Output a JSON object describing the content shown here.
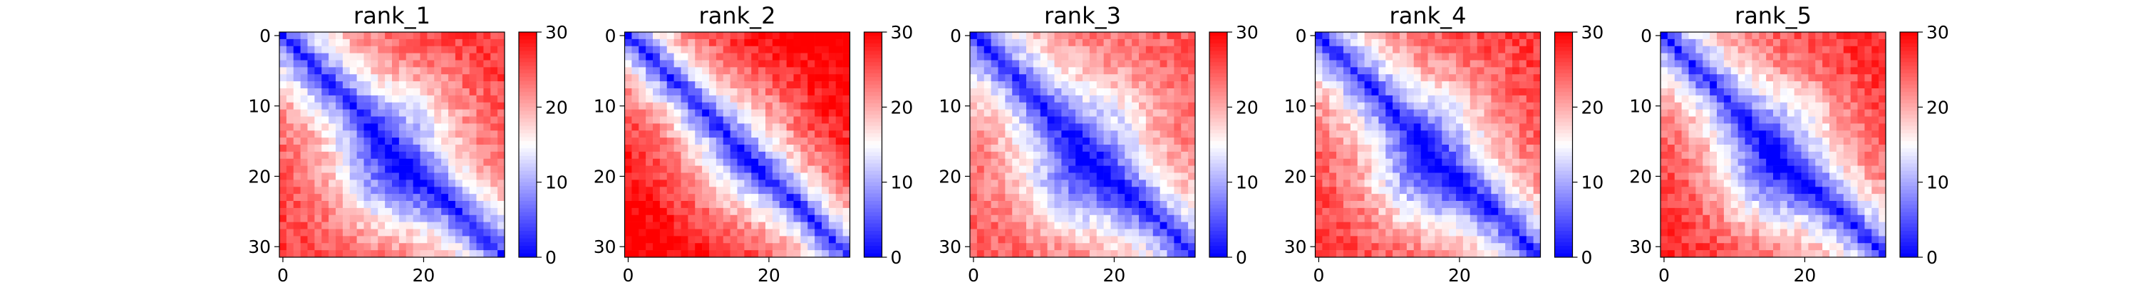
{
  "chart_data": [
    {
      "type": "heatmap",
      "title": "rank_1",
      "size": 32,
      "xticks": [
        0,
        20
      ],
      "yticks": [
        0,
        10,
        20,
        30
      ],
      "xlim": [
        0,
        32
      ],
      "ylim": [
        32,
        0
      ],
      "colorbar": {
        "min": 0,
        "max": 30,
        "ticks": [
          0,
          10,
          20,
          30
        ],
        "colormap": "bwr"
      },
      "pattern": {
        "near_value": 1.5,
        "far_value": 27,
        "width": 7.5,
        "off_diagonal_blob": 10,
        "bias": 0
      }
    },
    {
      "type": "heatmap",
      "title": "rank_2",
      "size": 32,
      "xticks": [
        0,
        20
      ],
      "yticks": [
        0,
        10,
        20,
        30
      ],
      "xlim": [
        0,
        32
      ],
      "ylim": [
        32,
        0
      ],
      "colorbar": {
        "min": 0,
        "max": 30,
        "ticks": [
          0,
          10,
          20,
          30
        ],
        "colormap": "bwr"
      },
      "pattern": {
        "near_value": 1.5,
        "far_value": 29.5,
        "width": 7.0,
        "off_diagonal_blob": 5,
        "bias": 2
      }
    },
    {
      "type": "heatmap",
      "title": "rank_3",
      "size": 32,
      "xticks": [
        0,
        20
      ],
      "yticks": [
        0,
        10,
        20,
        30
      ],
      "xlim": [
        0,
        32
      ],
      "ylim": [
        32,
        0
      ],
      "colorbar": {
        "min": 0,
        "max": 30,
        "ticks": [
          0,
          10,
          20,
          30
        ],
        "colormap": "bwr"
      },
      "pattern": {
        "near_value": 1.5,
        "far_value": 26,
        "width": 7.5,
        "off_diagonal_blob": 10,
        "bias": -1
      }
    },
    {
      "type": "heatmap",
      "title": "rank_4",
      "size": 32,
      "xticks": [
        0,
        20
      ],
      "yticks": [
        0,
        10,
        20,
        30
      ],
      "xlim": [
        0,
        32
      ],
      "ylim": [
        32,
        0
      ],
      "colorbar": {
        "min": 0,
        "max": 30,
        "ticks": [
          0,
          10,
          20,
          30
        ],
        "colormap": "bwr"
      },
      "pattern": {
        "near_value": 1.5,
        "far_value": 27,
        "width": 7.5,
        "off_diagonal_blob": 10,
        "bias": 0
      }
    },
    {
      "type": "heatmap",
      "title": "rank_5",
      "size": 32,
      "xticks": [
        0,
        20
      ],
      "yticks": [
        0,
        10,
        20,
        30
      ],
      "xlim": [
        0,
        32
      ],
      "ylim": [
        32,
        0
      ],
      "colorbar": {
        "min": 0,
        "max": 30,
        "ticks": [
          0,
          10,
          20,
          30
        ],
        "colormap": "bwr"
      },
      "pattern": {
        "near_value": 1.5,
        "far_value": 27.5,
        "width": 7.5,
        "off_diagonal_blob": 10,
        "bias": 0.5
      }
    }
  ]
}
